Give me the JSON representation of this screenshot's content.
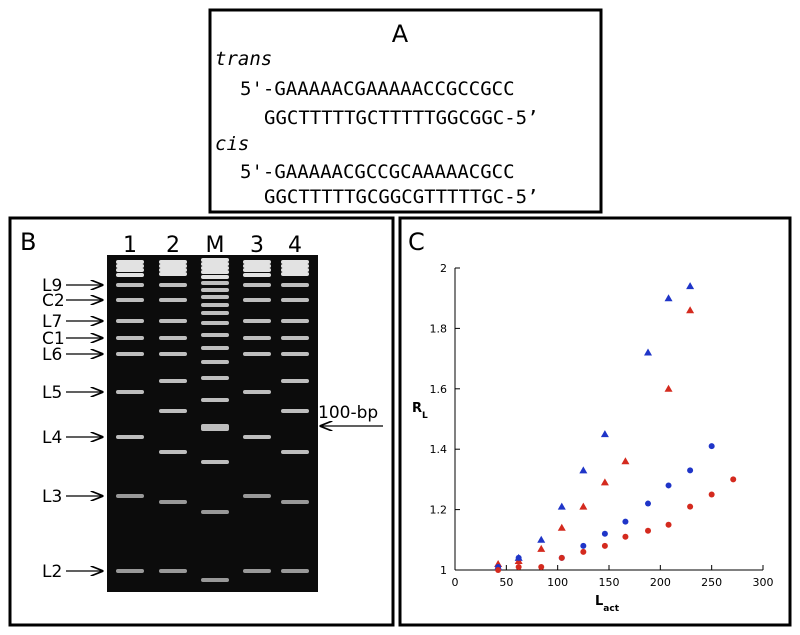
{
  "panel_a": {
    "label": "A",
    "lines": [
      "trans",
      "5'-GAAAAACGAAAAACCGCCGCC",
      "GGCTTTTTGCTTTTTGGCGGC-5’",
      "cis",
      "5'-GAAAAACGCCGCAAAAACGCC",
      "GGCTTTTTGCGGCGTTTTTGC-5’"
    ]
  },
  "panel_b": {
    "label": "B",
    "lanes": [
      "1",
      "2",
      "M",
      "3",
      "4"
    ],
    "markers": [
      "L9",
      "C2",
      "L7",
      "C1",
      "L6",
      "L5",
      "L4",
      "L3",
      "L2"
    ],
    "ladder_label": "100-bp"
  },
  "chart_data": {
    "type": "scatter",
    "panel_label": "C",
    "xlabel": "L",
    "xlabel_sub": "act",
    "ylabel": "R",
    "ylabel_sub": "L",
    "xlim": [
      0,
      300
    ],
    "xticks": [
      0,
      50,
      100,
      150,
      200,
      250,
      300
    ],
    "ylim": [
      1,
      2
    ],
    "yticks": [
      1,
      1.2,
      1.4,
      1.6,
      1.8,
      2
    ],
    "series": [
      {
        "color": "#1f35c8",
        "marker": "triangle",
        "x": [
          42,
          62,
          84,
          104,
          125,
          146,
          188,
          208,
          229
        ],
        "values": [
          1.01,
          1.04,
          1.1,
          1.21,
          1.33,
          1.45,
          1.72,
          1.9,
          1.94
        ]
      },
      {
        "color": "#d42a1e",
        "marker": "triangle",
        "x": [
          42,
          62,
          84,
          104,
          125,
          146,
          166,
          208,
          229
        ],
        "values": [
          1.02,
          1.03,
          1.07,
          1.14,
          1.21,
          1.29,
          1.36,
          1.6,
          1.86
        ]
      },
      {
        "color": "#1f35c8",
        "marker": "circle",
        "x": [
          42,
          62,
          104,
          125,
          146,
          166,
          188,
          208,
          229,
          250
        ],
        "values": [
          1.01,
          1.04,
          1.04,
          1.08,
          1.12,
          1.16,
          1.22,
          1.28,
          1.33,
          1.41
        ]
      },
      {
        "color": "#d42a1e",
        "marker": "circle",
        "x": [
          42,
          62,
          84,
          104,
          125,
          146,
          166,
          188,
          208,
          229,
          250,
          271
        ],
        "values": [
          1.0,
          1.01,
          1.01,
          1.04,
          1.06,
          1.08,
          1.11,
          1.13,
          1.15,
          1.21,
          1.25,
          1.3
        ]
      }
    ]
  }
}
